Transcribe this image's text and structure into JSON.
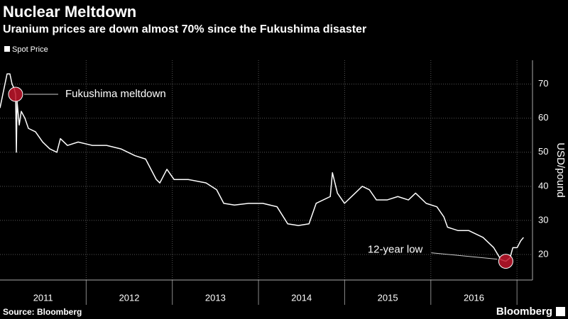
{
  "chart_data": {
    "type": "line",
    "title": "Nuclear Meltdown",
    "subtitle": "Uranium prices are down almost 70% since the Fukushima disaster",
    "y_label": "USD/pound",
    "source": "Source: Bloomberg",
    "brand": "Bloomberg",
    "legend": "top-left",
    "grid": true,
    "xlim": [
      2011.0,
      2017.18
    ],
    "ylim": [
      12.5,
      77
    ],
    "yticks": [
      20,
      30,
      40,
      50,
      60,
      70
    ],
    "xticks": [
      {
        "value": 2011.5,
        "label": "2011"
      },
      {
        "value": 2012.5,
        "label": "2012"
      },
      {
        "value": 2013.5,
        "label": "2013"
      },
      {
        "value": 2014.5,
        "label": "2014"
      },
      {
        "value": 2015.5,
        "label": "2015"
      },
      {
        "value": 2016.5,
        "label": "2016"
      }
    ],
    "xgrid": [
      2012,
      2013,
      2014,
      2015,
      2016,
      2017
    ],
    "x": [
      2011.0,
      2011.041,
      2011.082,
      2011.115,
      2011.14,
      2011.165,
      2011.181,
      2011.19,
      2011.198,
      2011.223,
      2011.247,
      2011.289,
      2011.33,
      2011.412,
      2011.495,
      2011.577,
      2011.66,
      2011.701,
      2011.783,
      2011.907,
      2012.072,
      2012.237,
      2012.402,
      2012.566,
      2012.69,
      2012.814,
      2012.855,
      2012.937,
      2013.02,
      2013.185,
      2013.391,
      2013.514,
      2013.597,
      2013.721,
      2013.885,
      2014.05,
      2014.215,
      2014.339,
      2014.463,
      2014.586,
      2014.669,
      2014.833,
      2014.858,
      2014.916,
      2014.998,
      2015.122,
      2015.204,
      2015.287,
      2015.369,
      2015.493,
      2015.617,
      2015.74,
      2015.823,
      2015.946,
      2016.07,
      2016.152,
      2016.194,
      2016.317,
      2016.441,
      2016.606,
      2016.73,
      2016.812,
      2016.87,
      2016.919,
      2016.952,
      2017.002,
      2017.043,
      2017.076
    ],
    "series": [
      {
        "name": "Spot Price",
        "color": "#ffffff",
        "values": [
          63,
          68,
          73,
          73,
          70,
          68.7,
          67,
          50,
          65,
          58,
          62,
          60,
          57,
          56,
          53,
          51,
          50,
          54,
          52,
          53,
          52,
          52,
          51,
          49,
          48,
          42,
          41,
          45,
          42,
          42,
          41,
          39,
          35,
          34.5,
          35,
          35,
          34,
          29,
          28.5,
          29,
          35,
          37,
          44,
          38,
          35,
          38,
          40,
          39,
          36,
          36,
          37,
          36,
          38,
          35,
          34,
          31,
          28,
          27,
          27,
          25,
          22,
          18.5,
          18,
          19,
          22,
          22,
          24,
          25
        ]
      }
    ],
    "annotations": [
      {
        "text": "Fukushima meltdown",
        "x": 2011.181,
        "y": 67
      },
      {
        "text": "12-year low",
        "x": 2016.87,
        "y": 18
      }
    ]
  }
}
